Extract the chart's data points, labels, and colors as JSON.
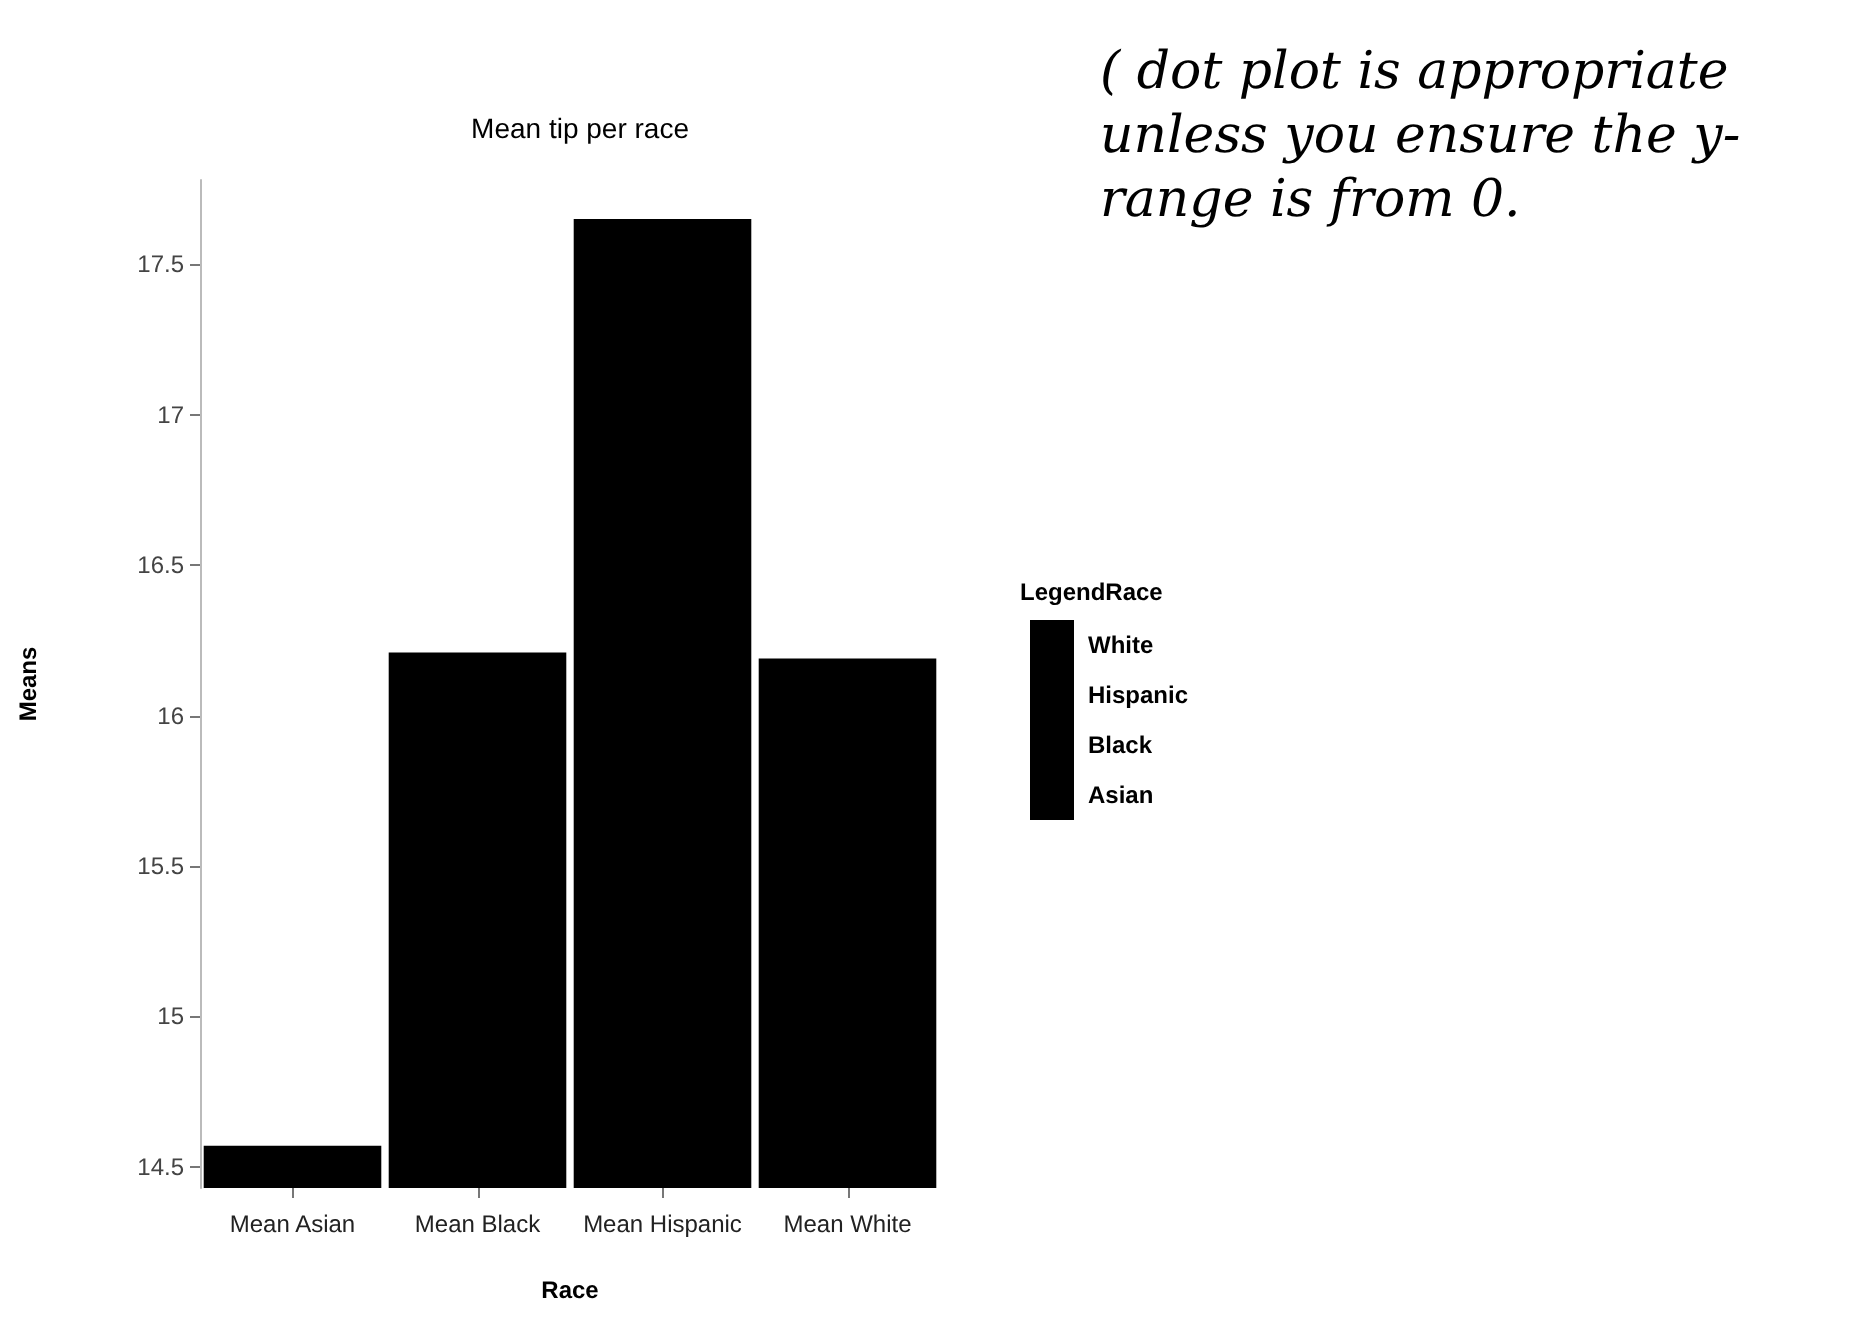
{
  "chart_data": {
    "type": "bar",
    "title": "Mean tip per race",
    "xlabel": "Race",
    "ylabel": "Means",
    "legend_title": "LegendRace",
    "categories": [
      "Mean Asian",
      "Mean Black",
      "Mean Hispanic",
      "Mean White"
    ],
    "series": [
      {
        "name": "Asian",
        "color": "#000000",
        "values": [
          14.57,
          null,
          null,
          null
        ]
      },
      {
        "name": "Black",
        "color": "#000000",
        "values": [
          null,
          16.21,
          null,
          null
        ]
      },
      {
        "name": "Hispanic",
        "color": "#000000",
        "values": [
          null,
          null,
          17.65,
          null
        ]
      },
      {
        "name": "White",
        "color": "#000000",
        "values": [
          null,
          null,
          null,
          16.19
        ]
      }
    ],
    "ylim": [
      14.43,
      17.78
    ],
    "yticks": [
      14.5,
      15,
      15.5,
      16,
      16.5,
      17,
      17.5
    ],
    "grid": false,
    "legend": "right",
    "annotations": [
      "( dot plot is appropriate unless you ensure the y-range is from 0."
    ]
  }
}
